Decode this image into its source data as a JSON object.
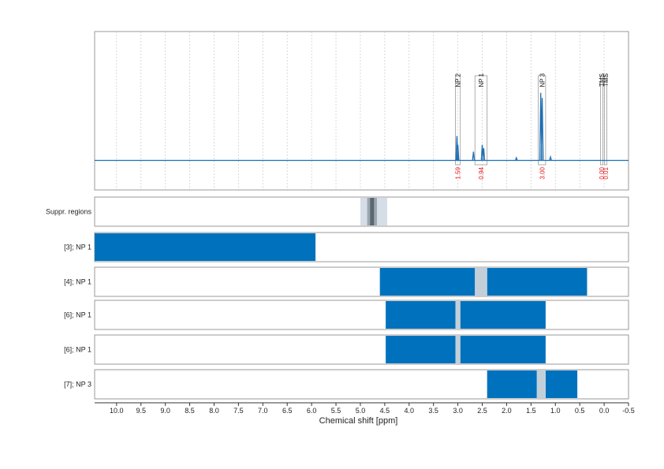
{
  "chart_data": {
    "type": "nmr-spectrum-with-region-bars",
    "xlabel": "Chemical shift [ppm]",
    "x_reversed": true,
    "xlim": [
      10.45,
      -0.5
    ],
    "x_ticks": [
      "10.0",
      "9.5",
      "9.0",
      "8.5",
      "8.0",
      "7.5",
      "7.0",
      "6.5",
      "6.0",
      "5.5",
      "5.0",
      "4.5",
      "4.0",
      "3.5",
      "3.0",
      "2.5",
      "2.0",
      "1.5",
      "1.0",
      "0.5",
      "0.0",
      "-0.5"
    ],
    "grid": "vertical-dotted",
    "colors": {
      "spectrum": "#1f6fb4",
      "bar": "#0072bd",
      "excluded": "#c2cfd9",
      "integral_text": "#e31a1c",
      "box": "#9a9a9a",
      "suppress_light": "#d5dee6",
      "suppress_mid": "#9aa6b0",
      "suppress_dark": "#5a6670"
    },
    "peak_annotations": [
      {
        "label": "NP 2",
        "from": 3.05,
        "to": 2.95,
        "integral": "1.59"
      },
      {
        "label": "NP 1",
        "from": 2.65,
        "to": 2.4,
        "integral": "0.94"
      },
      {
        "label": "NP 3",
        "from": 1.35,
        "to": 1.2,
        "integral": "3.00"
      },
      {
        "label": "TMS",
        "from": 0.05,
        "to": 0.05,
        "integral": "0.00"
      },
      {
        "label": "TMS",
        "from": -0.03,
        "to": -0.03,
        "integral": "0.01"
      }
    ],
    "spectrum_peaks": [
      {
        "ppm": 3.02,
        "height": 0.28
      },
      {
        "ppm": 3.0,
        "height": 0.18
      },
      {
        "ppm": 2.68,
        "height": 0.1
      },
      {
        "ppm": 2.5,
        "height": 0.18
      },
      {
        "ppm": 2.47,
        "height": 0.14
      },
      {
        "ppm": 1.8,
        "height": 0.03
      },
      {
        "ppm": 1.3,
        "height": 0.78
      },
      {
        "ppm": 1.27,
        "height": 0.72
      },
      {
        "ppm": 1.1,
        "height": 0.04
      }
    ],
    "suppressed_regions": [
      {
        "from": 5.0,
        "to": 4.45,
        "shade": "light"
      },
      {
        "from": 4.86,
        "to": 4.66,
        "shade": "mid"
      },
      {
        "from": 4.8,
        "to": 4.72,
        "shade": "dark"
      }
    ],
    "rows": [
      {
        "label": "Suppr. regions",
        "segments": [],
        "excluded": []
      },
      {
        "label": "[3]; NP 1",
        "segments": [
          [
            10.45,
            5.92
          ]
        ],
        "excluded": []
      },
      {
        "label": "[4]; NP 1",
        "segments": [
          [
            4.6,
            2.65
          ],
          [
            2.4,
            0.35
          ]
        ],
        "excluded": [
          [
            2.65,
            2.4
          ]
        ]
      },
      {
        "label": "[6]; NP 1",
        "segments": [
          [
            4.48,
            3.05
          ],
          [
            2.95,
            1.2
          ]
        ],
        "excluded": [
          [
            3.05,
            2.95
          ]
        ]
      },
      {
        "label": "[6]; NP 1",
        "segments": [
          [
            4.48,
            3.05
          ],
          [
            2.95,
            1.2
          ]
        ],
        "excluded": [
          [
            3.05,
            2.95
          ]
        ]
      },
      {
        "label": "[7]; NP 3",
        "segments": [
          [
            2.4,
            1.38
          ],
          [
            1.2,
            0.55
          ]
        ],
        "excluded": [
          [
            1.38,
            1.2
          ]
        ]
      }
    ]
  }
}
